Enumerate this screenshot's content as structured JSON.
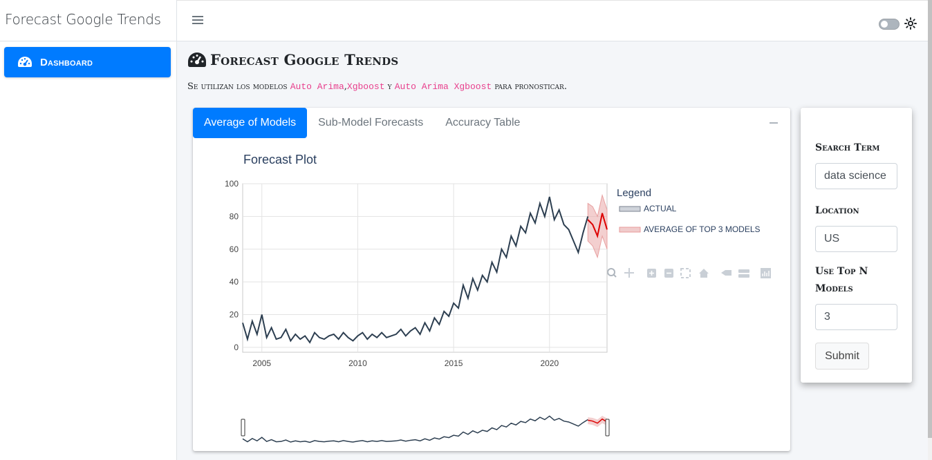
{
  "app": {
    "brand": "Forecast Google Trends"
  },
  "sidebar": {
    "items": [
      {
        "label": "Dashboard",
        "icon": "tachometer-icon"
      }
    ]
  },
  "topbar": {
    "menu_icon": "hamburger-icon",
    "theme_icon": "sun-icon"
  },
  "header": {
    "title": "Forecast Google Trends",
    "subtitle_prefix": "Se utilizan los modelos",
    "model1": "Auto Arima",
    "sep1": ",",
    "model2": "Xgboost",
    "sep2": "y",
    "model3": "Auto Arima Xgboost",
    "subtitle_suffix": "para pronosticar."
  },
  "tabs": [
    {
      "label": "Average of Models",
      "active": true
    },
    {
      "label": "Sub-Model Forecasts",
      "active": false
    },
    {
      "label": "Accuracy Table",
      "active": false
    }
  ],
  "form": {
    "search_label": "Search Term",
    "search_value": "data science",
    "location_label": "Location",
    "location_value": "US",
    "topn_label_line1": "Use Top N",
    "topn_label_line2": "Models",
    "topn_value": "3",
    "submit_label": "Submit"
  },
  "colors": {
    "accent": "#007bff",
    "actual": "#2c3e50",
    "forecast": "#dd0000",
    "band": "#e8a0a0"
  },
  "chart_data": {
    "type": "line",
    "title": "Forecast Plot",
    "legend_title": "Legend",
    "legend_placement": "right",
    "grid": true,
    "xlim": [
      2004,
      2023
    ],
    "ylim": [
      -3,
      100
    ],
    "x_ticks": [
      "2005",
      "2010",
      "2015",
      "2020"
    ],
    "y_ticks": [
      "0",
      "20",
      "40",
      "60",
      "80",
      "100"
    ],
    "series": [
      {
        "name": "ACTUAL",
        "x": [
          2004.0,
          2004.25,
          2004.5,
          2004.75,
          2005.0,
          2005.25,
          2005.5,
          2005.75,
          2006.0,
          2006.25,
          2006.5,
          2006.75,
          2007.0,
          2007.25,
          2007.5,
          2007.75,
          2008.0,
          2008.25,
          2008.5,
          2008.75,
          2009.0,
          2009.25,
          2009.5,
          2009.75,
          2010.0,
          2010.25,
          2010.5,
          2010.75,
          2011.0,
          2011.25,
          2011.5,
          2011.75,
          2012.0,
          2012.25,
          2012.5,
          2012.75,
          2013.0,
          2013.25,
          2013.5,
          2013.75,
          2014.0,
          2014.25,
          2014.5,
          2014.75,
          2015.0,
          2015.25,
          2015.5,
          2015.75,
          2016.0,
          2016.25,
          2016.5,
          2016.75,
          2017.0,
          2017.25,
          2017.5,
          2017.75,
          2018.0,
          2018.25,
          2018.5,
          2018.75,
          2019.0,
          2019.25,
          2019.5,
          2019.75,
          2020.0,
          2020.25,
          2020.5,
          2020.75,
          2021.0,
          2021.25,
          2021.5,
          2021.75,
          2022.0
        ],
        "values": [
          15,
          5,
          16,
          8,
          20,
          6,
          12,
          5,
          6,
          11,
          4,
          8,
          5,
          7,
          3,
          9,
          6,
          5,
          7,
          8,
          5,
          9,
          6,
          4,
          7,
          9,
          5,
          8,
          6,
          9,
          6,
          7,
          8,
          11,
          7,
          10,
          12,
          8,
          15,
          10,
          18,
          14,
          22,
          19,
          27,
          24,
          38,
          30,
          42,
          35,
          44,
          40,
          52,
          46,
          60,
          55,
          68,
          62,
          74,
          70,
          82,
          76,
          88,
          80,
          92,
          78,
          84,
          75,
          72,
          65,
          58,
          70,
          80
        ],
        "color": "#2c3e50"
      },
      {
        "name": "AVERAGE OF TOP 3 MODELS",
        "x": [
          2022.0,
          2022.25,
          2022.5,
          2022.75,
          2023.0
        ],
        "values": [
          78,
          75,
          68,
          82,
          72
        ],
        "lower": [
          65,
          62,
          55,
          68,
          60
        ],
        "upper": [
          88,
          86,
          80,
          93,
          84
        ],
        "color": "#dd0000"
      }
    ]
  }
}
